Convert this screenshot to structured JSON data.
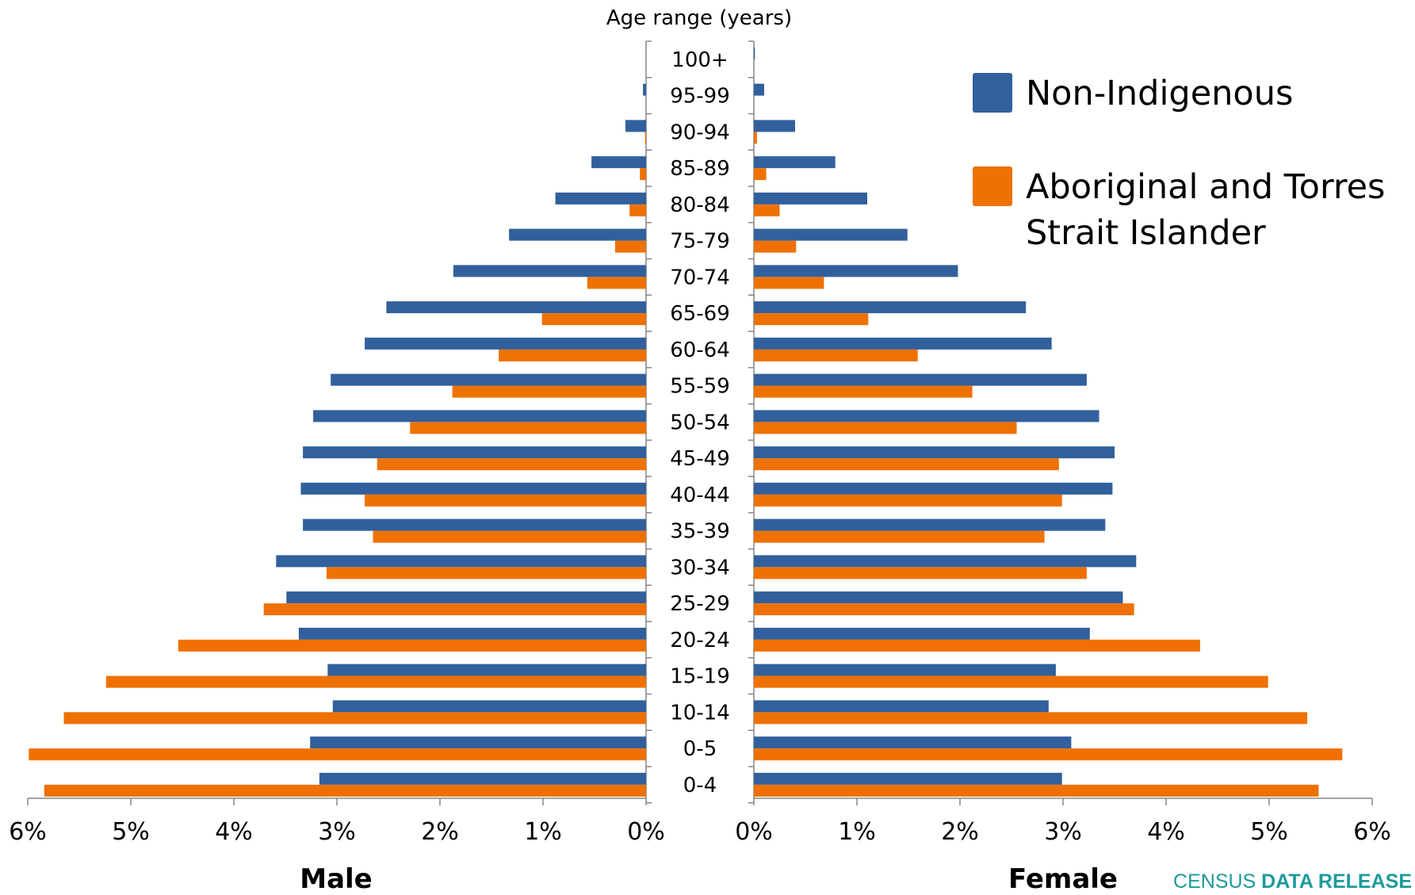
{
  "chart_data": {
    "type": "bar",
    "orientation": "horizontal",
    "subtype": "population-pyramid",
    "center_label": "Age range (years)",
    "categories": [
      "100+",
      "95-99",
      "90-94",
      "85-89",
      "80-84",
      "75-79",
      "70-74",
      "65-69",
      "60-64",
      "55-59",
      "50-54",
      "45-49",
      "40-44",
      "35-39",
      "30-34",
      "25-29",
      "20-24",
      "15-19",
      "10-14",
      "0-5",
      "0-4"
    ],
    "left_panel": {
      "label": "Male",
      "xlim": [
        6,
        0
      ],
      "ticks": [
        "6%",
        "5%",
        "4%",
        "3%",
        "2%",
        "1%",
        "0%"
      ],
      "series": [
        {
          "name": "Non-Indigenous",
          "values": [
            0.0,
            0.03,
            0.2,
            0.53,
            0.88,
            1.33,
            1.87,
            2.52,
            2.73,
            3.06,
            3.23,
            3.33,
            3.35,
            3.33,
            3.59,
            3.49,
            3.37,
            3.09,
            3.04,
            3.26,
            3.17
          ]
        },
        {
          "name": "Aboriginal and Torres Strait Islander",
          "values": [
            0.0,
            0.0,
            0.01,
            0.06,
            0.16,
            0.3,
            0.57,
            1.01,
            1.43,
            1.88,
            2.29,
            2.61,
            2.73,
            2.65,
            3.1,
            3.71,
            4.54,
            5.24,
            5.65,
            5.99,
            5.84
          ]
        }
      ]
    },
    "right_panel": {
      "label": "Female",
      "xlim": [
        0,
        6
      ],
      "ticks": [
        "0%",
        "1%",
        "2%",
        "3%",
        "4%",
        "5%",
        "6%"
      ],
      "series": [
        {
          "name": "Non-Indigenous",
          "values": [
            0.01,
            0.1,
            0.4,
            0.79,
            1.1,
            1.49,
            1.98,
            2.64,
            2.89,
            3.23,
            3.35,
            3.5,
            3.48,
            3.41,
            3.71,
            3.58,
            3.26,
            2.93,
            2.86,
            3.08,
            2.99
          ]
        },
        {
          "name": "Aboriginal and Torres Strait Islander",
          "values": [
            0.0,
            0.0,
            0.03,
            0.12,
            0.25,
            0.41,
            0.68,
            1.11,
            1.59,
            2.12,
            2.55,
            2.96,
            2.99,
            2.82,
            3.23,
            3.69,
            4.33,
            4.99,
            5.37,
            5.71,
            5.48
          ]
        }
      ]
    },
    "colors": {
      "Non-Indigenous": "#31609c",
      "Aboriginal and Torres Strait Islander": "#ef7103"
    },
    "legend": {
      "placement": "top-right",
      "items": [
        {
          "lines": [
            "Non-Indigenous"
          ],
          "color": "#31609c"
        },
        {
          "lines": [
            "Aboriginal and Torres",
            "Strait Islander"
          ],
          "color": "#ef7103"
        }
      ]
    },
    "grid": false
  },
  "branding": {
    "part1": "CENSUS ",
    "part2": "DATA RELEASE"
  }
}
